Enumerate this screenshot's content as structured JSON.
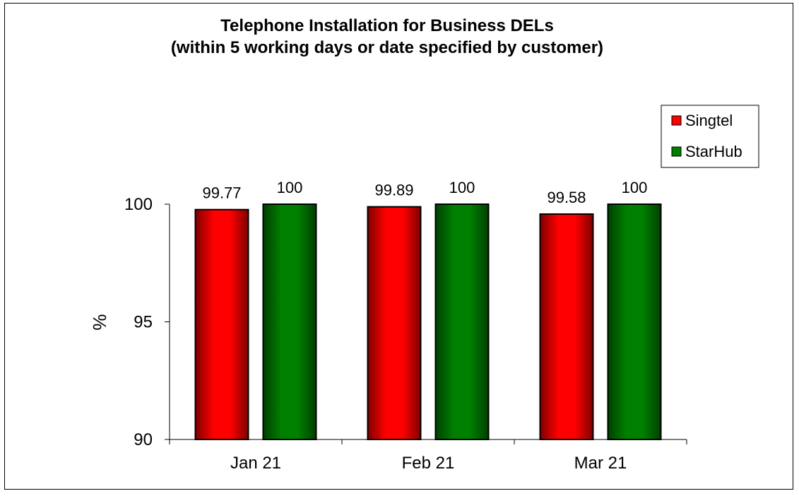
{
  "chart_data": {
    "type": "bar",
    "title": "Telephone Installation for Business DELs",
    "subtitle": "(within 5 working days or date specified by customer)",
    "xlabel": "",
    "ylabel": "%",
    "categories": [
      "Jan 21",
      "Feb 21",
      "Mar 21"
    ],
    "series": [
      {
        "name": "Singtel",
        "values": [
          99.77,
          99.89,
          99.58
        ],
        "color": "#ff0000"
      },
      {
        "name": "StarHub",
        "values": [
          100,
          100,
          100
        ],
        "color": "#008000"
      }
    ],
    "ylim": [
      90,
      100
    ],
    "yticks": [
      90,
      95,
      100
    ],
    "data_labels": [
      [
        "99.77",
        "99.89",
        "99.58"
      ],
      [
        "100",
        "100",
        "100"
      ]
    ],
    "grid": false,
    "legend_position": "top-right"
  }
}
